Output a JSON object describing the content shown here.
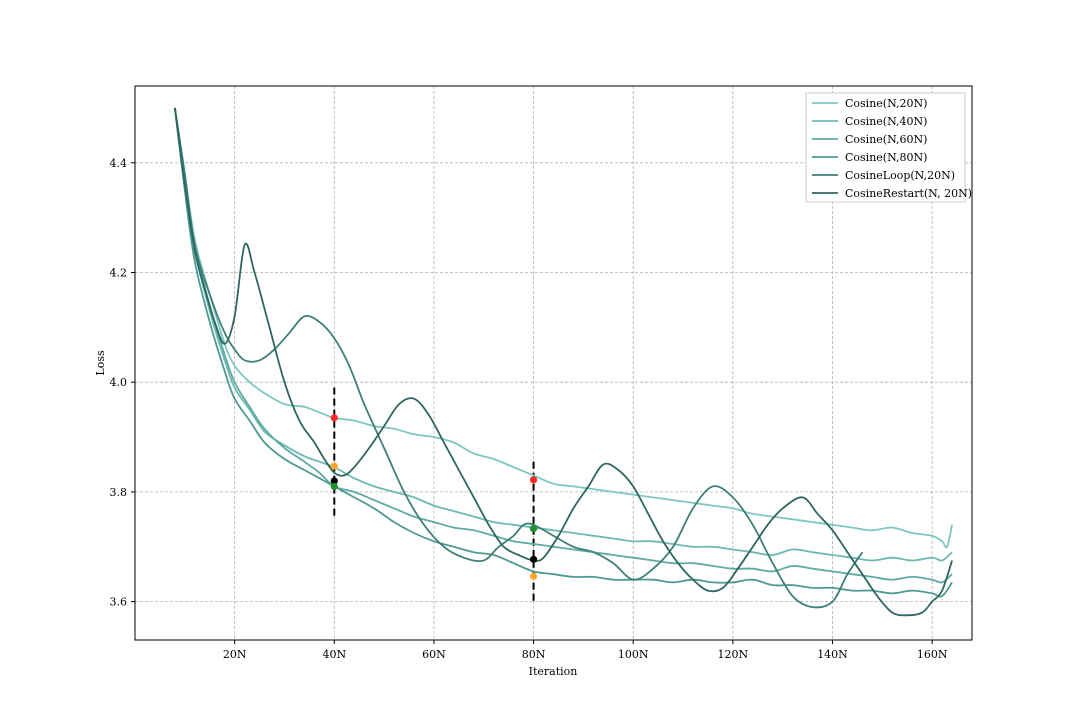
{
  "chart_data": {
    "type": "line",
    "title": "",
    "xlabel": "Iteration",
    "ylabel": "Loss",
    "xlim": [
      0,
      168
    ],
    "ylim": [
      3.53,
      4.54
    ],
    "x_ticks": [
      {
        "value": 20,
        "label": "20N"
      },
      {
        "value": 40,
        "label": "40N"
      },
      {
        "value": 60,
        "label": "60N"
      },
      {
        "value": 80,
        "label": "80N"
      },
      {
        "value": 100,
        "label": "100N"
      },
      {
        "value": 120,
        "label": "120N"
      },
      {
        "value": 140,
        "label": "140N"
      },
      {
        "value": 160,
        "label": "160N"
      }
    ],
    "y_ticks": [
      {
        "value": 3.6,
        "label": "3.6"
      },
      {
        "value": 3.8,
        "label": "3.8"
      },
      {
        "value": 4.0,
        "label": "4.0"
      },
      {
        "value": 4.2,
        "label": "4.2"
      },
      {
        "value": 4.4,
        "label": "4.4"
      }
    ],
    "grid": true,
    "legend_position": "top-right",
    "series": [
      {
        "name": "Cosine(N,20N)",
        "color": "#7cc8c0",
        "points": [
          [
            8,
            4.5
          ],
          [
            10,
            4.38
          ],
          [
            12,
            4.26
          ],
          [
            15,
            4.16
          ],
          [
            18,
            4.07
          ],
          [
            20,
            4.03
          ],
          [
            23,
            4.0
          ],
          [
            26,
            3.98
          ],
          [
            30,
            3.96
          ],
          [
            34,
            3.955
          ],
          [
            37,
            3.945
          ],
          [
            40,
            3.935
          ],
          [
            44,
            3.93
          ],
          [
            48,
            3.92
          ],
          [
            52,
            3.915
          ],
          [
            56,
            3.905
          ],
          [
            60,
            3.9
          ],
          [
            64,
            3.89
          ],
          [
            68,
            3.87
          ],
          [
            72,
            3.86
          ],
          [
            76,
            3.845
          ],
          [
            80,
            3.83
          ],
          [
            84,
            3.815
          ],
          [
            88,
            3.81
          ],
          [
            92,
            3.805
          ],
          [
            96,
            3.8
          ],
          [
            100,
            3.795
          ],
          [
            104,
            3.79
          ],
          [
            108,
            3.785
          ],
          [
            112,
            3.78
          ],
          [
            116,
            3.775
          ],
          [
            120,
            3.77
          ],
          [
            124,
            3.76
          ],
          [
            128,
            3.755
          ],
          [
            132,
            3.75
          ],
          [
            136,
            3.745
          ],
          [
            140,
            3.74
          ],
          [
            144,
            3.735
          ],
          [
            148,
            3.73
          ],
          [
            152,
            3.735
          ],
          [
            156,
            3.725
          ],
          [
            160,
            3.72
          ],
          [
            162,
            3.71
          ],
          [
            163,
            3.7
          ],
          [
            164,
            3.74
          ]
        ]
      },
      {
        "name": "Cosine(N,40N)",
        "color": "#6cbab2",
        "points": [
          [
            8,
            4.5
          ],
          [
            10,
            4.36
          ],
          [
            12,
            4.24
          ],
          [
            15,
            4.13
          ],
          [
            18,
            4.04
          ],
          [
            20,
            3.99
          ],
          [
            23,
            3.95
          ],
          [
            26,
            3.91
          ],
          [
            30,
            3.885
          ],
          [
            34,
            3.865
          ],
          [
            37,
            3.855
          ],
          [
            40,
            3.845
          ],
          [
            44,
            3.825
          ],
          [
            48,
            3.81
          ],
          [
            52,
            3.8
          ],
          [
            56,
            3.79
          ],
          [
            60,
            3.775
          ],
          [
            64,
            3.765
          ],
          [
            68,
            3.755
          ],
          [
            72,
            3.745
          ],
          [
            76,
            3.74
          ],
          [
            80,
            3.735
          ],
          [
            84,
            3.73
          ],
          [
            88,
            3.725
          ],
          [
            92,
            3.72
          ],
          [
            96,
            3.715
          ],
          [
            100,
            3.71
          ],
          [
            104,
            3.71
          ],
          [
            108,
            3.705
          ],
          [
            112,
            3.7
          ],
          [
            116,
            3.7
          ],
          [
            120,
            3.695
          ],
          [
            124,
            3.69
          ],
          [
            128,
            3.685
          ],
          [
            132,
            3.695
          ],
          [
            136,
            3.69
          ],
          [
            140,
            3.685
          ],
          [
            144,
            3.68
          ],
          [
            148,
            3.675
          ],
          [
            152,
            3.68
          ],
          [
            156,
            3.675
          ],
          [
            160,
            3.68
          ],
          [
            162,
            3.675
          ],
          [
            164,
            3.69
          ]
        ]
      },
      {
        "name": "Cosine(N,60N)",
        "color": "#5eaba3",
        "points": [
          [
            8,
            4.5
          ],
          [
            10,
            4.37
          ],
          [
            12,
            4.25
          ],
          [
            15,
            4.14
          ],
          [
            18,
            4.05
          ],
          [
            20,
            4.0
          ],
          [
            23,
            3.955
          ],
          [
            26,
            3.915
          ],
          [
            30,
            3.88
          ],
          [
            34,
            3.855
          ],
          [
            37,
            3.835
          ],
          [
            40,
            3.81
          ],
          [
            44,
            3.8
          ],
          [
            48,
            3.785
          ],
          [
            52,
            3.77
          ],
          [
            56,
            3.755
          ],
          [
            60,
            3.745
          ],
          [
            64,
            3.735
          ],
          [
            68,
            3.73
          ],
          [
            72,
            3.72
          ],
          [
            76,
            3.71
          ],
          [
            80,
            3.705
          ],
          [
            84,
            3.7
          ],
          [
            88,
            3.695
          ],
          [
            92,
            3.69
          ],
          [
            96,
            3.685
          ],
          [
            100,
            3.68
          ],
          [
            104,
            3.675
          ],
          [
            108,
            3.67
          ],
          [
            112,
            3.67
          ],
          [
            116,
            3.665
          ],
          [
            120,
            3.66
          ],
          [
            124,
            3.66
          ],
          [
            128,
            3.655
          ],
          [
            132,
            3.665
          ],
          [
            136,
            3.66
          ],
          [
            140,
            3.655
          ],
          [
            144,
            3.65
          ],
          [
            148,
            3.645
          ],
          [
            152,
            3.64
          ],
          [
            156,
            3.645
          ],
          [
            160,
            3.64
          ],
          [
            162,
            3.635
          ],
          [
            164,
            3.65
          ]
        ]
      },
      {
        "name": "Cosine(N,80N)",
        "color": "#4e9a92",
        "points": [
          [
            8,
            4.5
          ],
          [
            10,
            4.35
          ],
          [
            12,
            4.22
          ],
          [
            15,
            4.11
          ],
          [
            18,
            4.02
          ],
          [
            20,
            3.97
          ],
          [
            23,
            3.93
          ],
          [
            26,
            3.89
          ],
          [
            30,
            3.86
          ],
          [
            34,
            3.84
          ],
          [
            37,
            3.825
          ],
          [
            40,
            3.81
          ],
          [
            44,
            3.79
          ],
          [
            48,
            3.77
          ],
          [
            52,
            3.745
          ],
          [
            56,
            3.725
          ],
          [
            60,
            3.71
          ],
          [
            64,
            3.7
          ],
          [
            68,
            3.69
          ],
          [
            72,
            3.685
          ],
          [
            76,
            3.67
          ],
          [
            80,
            3.655
          ],
          [
            84,
            3.65
          ],
          [
            88,
            3.645
          ],
          [
            92,
            3.645
          ],
          [
            96,
            3.64
          ],
          [
            100,
            3.64
          ],
          [
            104,
            3.64
          ],
          [
            108,
            3.635
          ],
          [
            112,
            3.64
          ],
          [
            116,
            3.635
          ],
          [
            120,
            3.635
          ],
          [
            124,
            3.64
          ],
          [
            128,
            3.63
          ],
          [
            132,
            3.63
          ],
          [
            136,
            3.625
          ],
          [
            140,
            3.625
          ],
          [
            144,
            3.62
          ],
          [
            148,
            3.62
          ],
          [
            152,
            3.615
          ],
          [
            156,
            3.62
          ],
          [
            160,
            3.615
          ],
          [
            162,
            3.61
          ],
          [
            164,
            3.635
          ]
        ]
      },
      {
        "name": "CosineLoop(N,20N)",
        "color": "#3f8078",
        "points": [
          [
            8,
            4.5
          ],
          [
            10,
            4.38
          ],
          [
            12,
            4.25
          ],
          [
            15,
            4.16
          ],
          [
            18,
            4.09
          ],
          [
            20,
            4.06
          ],
          [
            22,
            4.04
          ],
          [
            25,
            4.04
          ],
          [
            28,
            4.06
          ],
          [
            31,
            4.09
          ],
          [
            34,
            4.12
          ],
          [
            37,
            4.11
          ],
          [
            40,
            4.08
          ],
          [
            43,
            4.03
          ],
          [
            46,
            3.96
          ],
          [
            50,
            3.88
          ],
          [
            54,
            3.8
          ],
          [
            58,
            3.74
          ],
          [
            62,
            3.7
          ],
          [
            66,
            3.68
          ],
          [
            70,
            3.675
          ],
          [
            73,
            3.7
          ],
          [
            76,
            3.72
          ],
          [
            78,
            3.74
          ],
          [
            80,
            3.74
          ],
          [
            84,
            3.72
          ],
          [
            88,
            3.7
          ],
          [
            92,
            3.69
          ],
          [
            96,
            3.67
          ],
          [
            100,
            3.64
          ],
          [
            104,
            3.66
          ],
          [
            108,
            3.7
          ],
          [
            112,
            3.77
          ],
          [
            116,
            3.81
          ],
          [
            120,
            3.79
          ],
          [
            124,
            3.74
          ],
          [
            128,
            3.67
          ],
          [
            132,
            3.61
          ],
          [
            136,
            3.59
          ],
          [
            140,
            3.6
          ],
          [
            143,
            3.65
          ],
          [
            146,
            3.69
          ]
        ]
      },
      {
        "name": "CosineRestart(N, 20N)",
        "color": "#2e6660",
        "points": [
          [
            8,
            4.5
          ],
          [
            10,
            4.36
          ],
          [
            12,
            4.24
          ],
          [
            14,
            4.17
          ],
          [
            16,
            4.11
          ],
          [
            18,
            4.07
          ],
          [
            20,
            4.12
          ],
          [
            22,
            4.25
          ],
          [
            24,
            4.2
          ],
          [
            27,
            4.1
          ],
          [
            30,
            4.0
          ],
          [
            33,
            3.93
          ],
          [
            36,
            3.89
          ],
          [
            38,
            3.86
          ],
          [
            40,
            3.835
          ],
          [
            42,
            3.83
          ],
          [
            44,
            3.845
          ],
          [
            47,
            3.88
          ],
          [
            50,
            3.92
          ],
          [
            53,
            3.96
          ],
          [
            56,
            3.97
          ],
          [
            59,
            3.94
          ],
          [
            62,
            3.89
          ],
          [
            65,
            3.84
          ],
          [
            68,
            3.79
          ],
          [
            71,
            3.74
          ],
          [
            74,
            3.7
          ],
          [
            77,
            3.685
          ],
          [
            80,
            3.675
          ],
          [
            82,
            3.68
          ],
          [
            85,
            3.72
          ],
          [
            88,
            3.77
          ],
          [
            91,
            3.81
          ],
          [
            94,
            3.85
          ],
          [
            97,
            3.84
          ],
          [
            100,
            3.81
          ],
          [
            103,
            3.76
          ],
          [
            106,
            3.71
          ],
          [
            109,
            3.67
          ],
          [
            112,
            3.64
          ],
          [
            115,
            3.62
          ],
          [
            118,
            3.625
          ],
          [
            121,
            3.66
          ],
          [
            124,
            3.7
          ],
          [
            127,
            3.74
          ],
          [
            130,
            3.77
          ],
          [
            134,
            3.79
          ],
          [
            137,
            3.76
          ],
          [
            140,
            3.73
          ],
          [
            143,
            3.69
          ],
          [
            146,
            3.65
          ],
          [
            149,
            3.61
          ],
          [
            152,
            3.58
          ],
          [
            155,
            3.575
          ],
          [
            158,
            3.58
          ],
          [
            160,
            3.6
          ],
          [
            162,
            3.62
          ],
          [
            164,
            3.675
          ]
        ]
      }
    ],
    "annotations": {
      "vlines": [
        {
          "x": 40,
          "y_from": 3.75,
          "y_to": 3.99
        },
        {
          "x": 80,
          "y_from": 3.6,
          "y_to": 3.855
        }
      ],
      "markers": [
        {
          "x": 40,
          "y": 3.935,
          "color": "#ff2a2a"
        },
        {
          "x": 40,
          "y": 3.847,
          "color": "#ffa52a"
        },
        {
          "x": 40,
          "y": 3.82,
          "color": "#000000"
        },
        {
          "x": 40,
          "y": 3.81,
          "color": "#1e8e2e"
        },
        {
          "x": 80,
          "y": 3.822,
          "color": "#ff2a2a"
        },
        {
          "x": 80,
          "y": 3.733,
          "color": "#1e8e2e"
        },
        {
          "x": 80,
          "y": 3.677,
          "color": "#000000"
        },
        {
          "x": 80,
          "y": 3.646,
          "color": "#ffa52a"
        }
      ]
    }
  }
}
